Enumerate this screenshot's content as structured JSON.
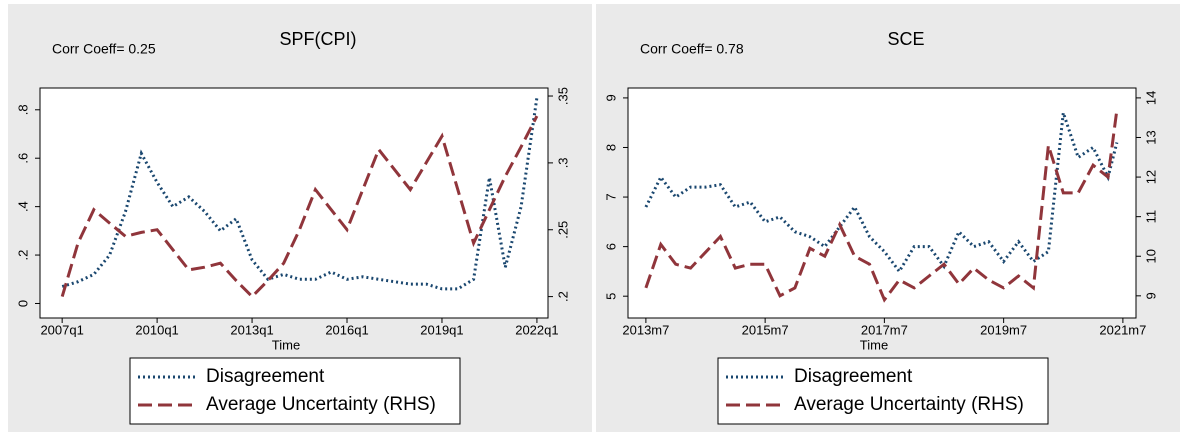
{
  "chart_data": [
    {
      "type": "line",
      "title": "SPF(CPI)",
      "annotation": "Corr Coeff= 0.25",
      "xlabel": "Time",
      "x": [
        2007.0,
        2007.5,
        2008.0,
        2008.5,
        2009.0,
        2009.5,
        2010.0,
        2010.5,
        2011.0,
        2011.5,
        2012.0,
        2012.5,
        2013.0,
        2013.5,
        2014.0,
        2014.5,
        2015.0,
        2015.5,
        2016.0,
        2016.5,
        2017.0,
        2017.5,
        2018.0,
        2018.5,
        2019.0,
        2019.5,
        2020.0,
        2020.5,
        2021.0,
        2021.5,
        2022.0
      ],
      "series": [
        {
          "name": "Disagreement",
          "color": "#1a476f",
          "dash": "dotted",
          "values": [
            0.07,
            0.09,
            0.12,
            0.2,
            0.38,
            0.62,
            0.5,
            0.4,
            0.44,
            0.38,
            0.3,
            0.35,
            0.18,
            0.1,
            0.12,
            0.1,
            0.1,
            0.13,
            0.1,
            0.11,
            0.1,
            0.09,
            0.08,
            0.08,
            0.06,
            0.06,
            0.1,
            0.52,
            0.15,
            0.4,
            0.85
          ]
        },
        {
          "name": "Average Uncertainty (RHS)",
          "color": "#90353b",
          "dash": "dashed",
          "axis": "y2",
          "values": [
            0.2,
            0.24,
            0.265,
            0.255,
            0.245,
            0.248,
            0.25,
            0.235,
            0.22,
            0.222,
            0.225,
            0.212,
            0.2,
            0.212,
            0.225,
            0.25,
            0.28,
            0.265,
            0.25,
            0.28,
            0.31,
            0.295,
            0.28,
            0.3,
            0.32,
            0.28,
            0.24,
            0.265,
            0.29,
            0.312,
            0.335
          ]
        }
      ],
      "xlim": [
        2006.3,
        2022.35
      ],
      "xticks": [
        {
          "value": 2007,
          "label": "2007q1"
        },
        {
          "value": 2010,
          "label": "2010q1"
        },
        {
          "value": 2013,
          "label": "2013q1"
        },
        {
          "value": 2016,
          "label": "2016q1"
        },
        {
          "value": 2019,
          "label": "2019q1"
        },
        {
          "value": 2022,
          "label": "2022q1"
        }
      ],
      "ylim": [
        -0.06,
        0.89
      ],
      "yticks": [
        0,
        {
          "value": 0.2,
          "label": ".2"
        },
        {
          "value": 0.4,
          "label": ".4"
        },
        {
          "value": 0.6,
          "label": ".6"
        },
        {
          "value": 0.8,
          "label": ".8"
        }
      ],
      "y2lim": [
        0.184,
        0.356
      ],
      "y2ticks": [
        {
          "value": 0.2,
          "label": ".2"
        },
        {
          "value": 0.25,
          "label": ".25"
        },
        {
          "value": 0.3,
          "label": ".3"
        },
        {
          "value": 0.35,
          "label": ".35"
        }
      ]
    },
    {
      "type": "line",
      "title": "SCE",
      "annotation": "Corr Coeff= 0.78",
      "xlabel": "Time",
      "x": [
        2013.5,
        2013.75,
        2014.0,
        2014.25,
        2014.5,
        2014.75,
        2015.0,
        2015.25,
        2015.5,
        2015.75,
        2016.0,
        2016.25,
        2016.5,
        2016.75,
        2017.0,
        2017.25,
        2017.5,
        2017.75,
        2018.0,
        2018.25,
        2018.5,
        2018.75,
        2019.0,
        2019.25,
        2019.5,
        2019.75,
        2020.0,
        2020.25,
        2020.5,
        2020.75,
        2021.0,
        2021.25,
        2021.4
      ],
      "series": [
        {
          "name": "Disagreement",
          "color": "#1a476f",
          "dash": "dotted",
          "values": [
            6.8,
            7.4,
            7.0,
            7.2,
            7.2,
            7.25,
            6.8,
            6.9,
            6.5,
            6.6,
            6.3,
            6.2,
            6.0,
            6.4,
            6.8,
            6.2,
            5.9,
            5.5,
            6.0,
            6.0,
            5.6,
            6.3,
            6.0,
            6.1,
            5.7,
            6.1,
            5.7,
            5.9,
            8.7,
            7.8,
            8.0,
            7.4,
            8.1
          ]
        },
        {
          "name": "Average Uncertainty (RHS)",
          "color": "#90353b",
          "dash": "dashed",
          "axis": "y2",
          "values": [
            9.2,
            10.3,
            9.8,
            9.7,
            10.1,
            10.5,
            9.7,
            9.8,
            9.8,
            9.0,
            9.2,
            10.2,
            10.0,
            10.8,
            10.0,
            9.8,
            8.9,
            9.4,
            9.2,
            9.5,
            9.8,
            9.3,
            9.7,
            9.4,
            9.2,
            9.5,
            9.2,
            12.8,
            11.6,
            11.6,
            12.3,
            12.0,
            13.7
          ]
        }
      ],
      "xlim": [
        2013.2,
        2021.72
      ],
      "xticks": [
        {
          "value": 2013.5,
          "label": "2013m7"
        },
        {
          "value": 2015.5,
          "label": "2015m7"
        },
        {
          "value": 2017.5,
          "label": "2017m7"
        },
        {
          "value": 2019.5,
          "label": "2019m7"
        },
        {
          "value": 2021.5,
          "label": "2021m7"
        }
      ],
      "ylim": [
        4.56,
        9.2
      ],
      "yticks": [
        5,
        6,
        7,
        8,
        9
      ],
      "y2lim": [
        8.44,
        14.25
      ],
      "y2ticks": [
        9,
        10,
        11,
        12,
        13,
        14
      ]
    }
  ]
}
